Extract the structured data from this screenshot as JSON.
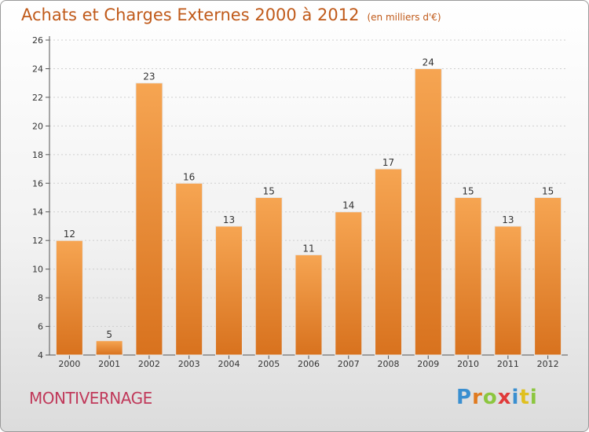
{
  "title": "Achats et Charges Externes 2000 à 2012",
  "unit": "(en milliers d'€)",
  "city": "MONTIVERNAGE",
  "logo": {
    "text": "Proxiti",
    "letters": [
      {
        "ch": "P",
        "color": "#3a8fd0"
      },
      {
        "ch": "r",
        "color": "#e07a1f"
      },
      {
        "ch": "o",
        "color": "#8cc63f"
      },
      {
        "ch": "x",
        "color": "#e03a3a"
      },
      {
        "ch": "i",
        "color": "#3a8fd0"
      },
      {
        "ch": "t",
        "color": "#e0c01f"
      },
      {
        "ch": "i",
        "color": "#8cc63f"
      }
    ]
  },
  "colors": {
    "bar_top": "#f6a552",
    "bar_bottom": "#d8721e",
    "title": "#c05a1a",
    "city": "#c0395a",
    "grid": "#cfcfcf"
  },
  "chart_data": {
    "type": "bar",
    "categories": [
      "2000",
      "2001",
      "2002",
      "2003",
      "2004",
      "2005",
      "2006",
      "2007",
      "2008",
      "2009",
      "2010",
      "2011",
      "2012"
    ],
    "values": [
      12,
      5,
      23,
      16,
      13,
      15,
      11,
      14,
      17,
      24,
      15,
      13,
      15
    ],
    "ylim": [
      4,
      26
    ],
    "yticks": [
      4,
      6,
      8,
      10,
      12,
      14,
      16,
      18,
      20,
      22,
      24,
      26
    ],
    "grid": true,
    "legend": "none"
  }
}
